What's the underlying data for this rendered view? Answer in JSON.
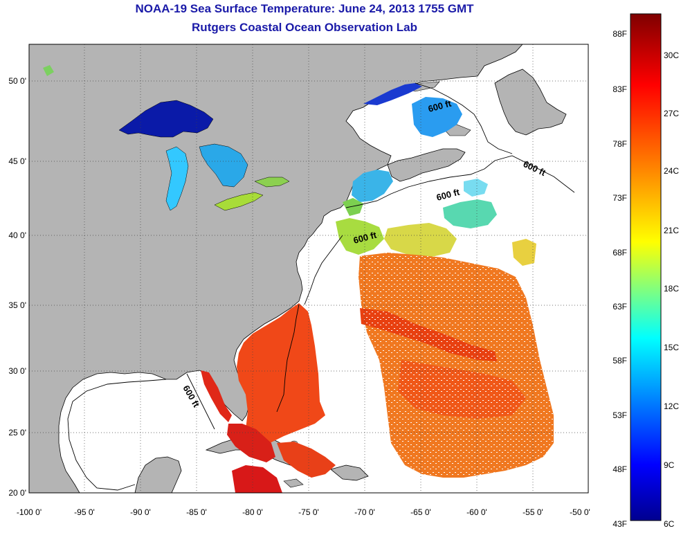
{
  "title": {
    "line1": "NOAA-19 Sea Surface Temperature:  June 24, 2013 1755 GMT",
    "line2": "Rutgers Coastal Ocean Observation Lab"
  },
  "map": {
    "lon_range": [
      -100,
      -50
    ],
    "lat_range": [
      20,
      52.5
    ],
    "lon_ticks": [
      "-100 0'",
      "-95 0'",
      "-90 0'",
      "-85 0'",
      "-80 0'",
      "-75 0'",
      "-70 0'",
      "-65 0'",
      "-60 0'",
      "-55 0'",
      "-50 0'"
    ],
    "lat_ticks": [
      "50 0'",
      "45 0'",
      "40 0'",
      "35 0'",
      "30 0'",
      "25 0'",
      "20 0'"
    ],
    "grid": "dotted",
    "land_color": "#b4b4b4",
    "contour_labels": [
      "600 ft",
      "600 ft",
      "600 ft",
      "600 ft",
      "600 ft"
    ]
  },
  "colorbar": {
    "range_f": [
      43,
      91
    ],
    "range_c": [
      6,
      32.8
    ],
    "f_labels": [
      "88F",
      "83F",
      "78F",
      "73F",
      "68F",
      "63F",
      "58F",
      "53F",
      "48F",
      "43F"
    ],
    "c_labels": [
      "30C",
      "27C",
      "24C",
      "21C",
      "18C",
      "15C",
      "12C",
      "9C",
      "6C"
    ],
    "colors": [
      "#00008f",
      "#0000ff",
      "#00ffff",
      "#ffff00",
      "#ff7f00",
      "#ff0000",
      "#7f0000"
    ]
  }
}
